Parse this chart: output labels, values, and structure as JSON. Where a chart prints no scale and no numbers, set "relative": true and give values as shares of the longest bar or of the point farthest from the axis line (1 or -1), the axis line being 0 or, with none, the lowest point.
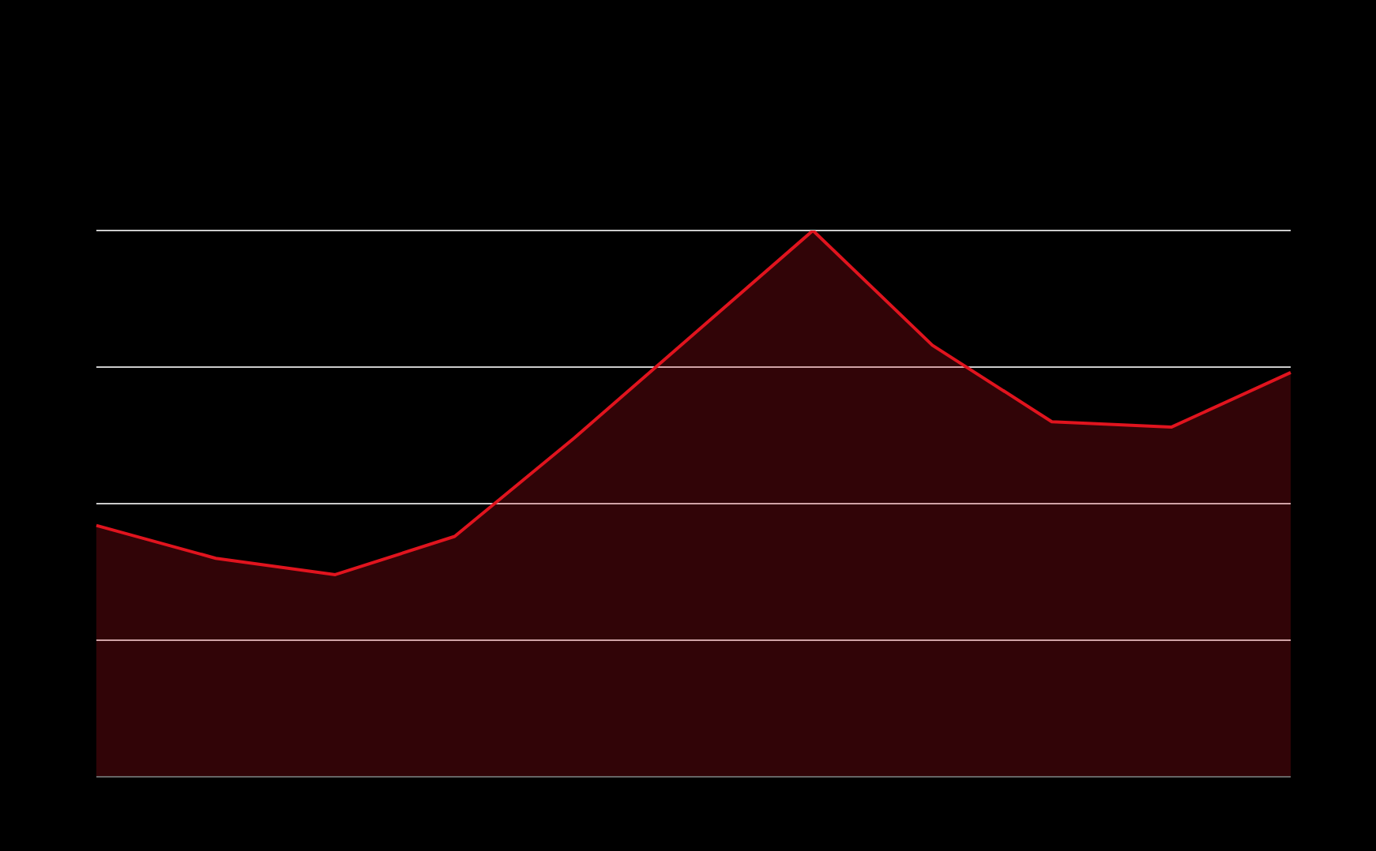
{
  "chart_data": {
    "type": "area",
    "relative": true,
    "grid": "y",
    "categories": [
      null,
      null,
      null,
      null,
      null,
      null,
      null,
      null,
      null,
      null,
      null
    ],
    "series": [
      {
        "color": "#e0141e",
        "values": [
          0.46,
          0.4,
          0.37,
          0.44,
          0.62,
          0.81,
          1,
          0.79,
          0.65,
          0.64,
          0.74
        ]
      }
    ]
  }
}
